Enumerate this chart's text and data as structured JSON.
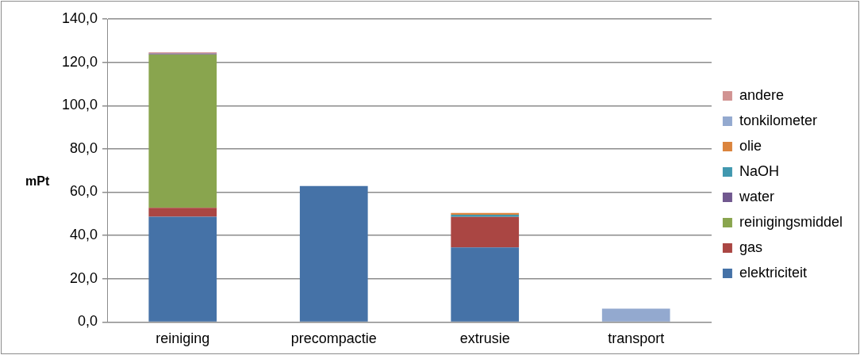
{
  "chart_data": {
    "type": "bar",
    "stacked": true,
    "ylabel": "mPt",
    "categories": [
      "reiniging",
      "precompactie",
      "extrusie",
      "transport"
    ],
    "series": [
      {
        "name": "elektriciteit",
        "color": "#4572a7",
        "values": [
          48.7,
          62.8,
          34.5,
          null
        ]
      },
      {
        "name": "gas",
        "color": "#aa4643",
        "values": [
          4.1,
          null,
          14.1,
          null
        ]
      },
      {
        "name": "reinigingsmiddel",
        "color": "#89a54e",
        "values": [
          70.8,
          null,
          null,
          null
        ]
      },
      {
        "name": "water",
        "color": "#71588f",
        "values": [
          0.5,
          null,
          null,
          null
        ]
      },
      {
        "name": "NaOH",
        "color": "#4198af",
        "values": [
          null,
          null,
          1.0,
          null
        ]
      },
      {
        "name": "olie",
        "color": "#db843d",
        "values": [
          null,
          null,
          0.8,
          null
        ]
      },
      {
        "name": "tonkilometer",
        "color": "#93a9cf",
        "values": [
          null,
          null,
          null,
          6.2
        ]
      },
      {
        "name": "andere",
        "color": "#d19392",
        "values": [
          0.5,
          null,
          null,
          null
        ]
      }
    ],
    "ylim": [
      0,
      140
    ],
    "yticks": [
      {
        "value": 0,
        "label": "0,0"
      },
      {
        "value": 20,
        "label": "20,0"
      },
      {
        "value": 40,
        "label": "40,0"
      },
      {
        "value": 60,
        "label": "60,0"
      },
      {
        "value": 80,
        "label": "80,0"
      },
      {
        "value": 100,
        "label": "100,0"
      },
      {
        "value": 120,
        "label": "120,0"
      },
      {
        "value": 140,
        "label": "140,0"
      }
    ],
    "grid": "y",
    "legend": "right"
  }
}
